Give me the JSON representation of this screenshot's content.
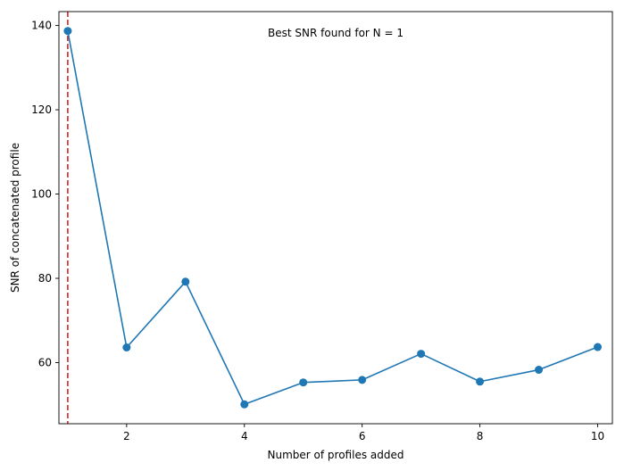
{
  "chart_data": {
    "type": "line",
    "title": "",
    "xlabel": "Number of profiles added",
    "ylabel": "SNR of concatenated profile",
    "x": [
      1,
      2,
      3,
      4,
      5,
      6,
      7,
      8,
      9,
      10
    ],
    "series": [
      {
        "values": [
          138.7,
          63.6,
          79.2,
          50.1,
          55.3,
          55.9,
          62.1,
          55.5,
          58.3,
          63.7
        ],
        "color": "#1f77b4",
        "marker": "circle"
      }
    ],
    "xlim": [
      0.85,
      10.25
    ],
    "ylim": [
      45.5,
      143.3
    ],
    "xticks": [
      2,
      4,
      6,
      8,
      10
    ],
    "yticks": [
      60,
      80,
      100,
      120,
      140
    ],
    "grid": false,
    "reference_line": {
      "orientation": "vertical",
      "x": 1,
      "color": "#d62728",
      "style": "dashed"
    },
    "annotation": "Best SNR found for N = 1"
  }
}
